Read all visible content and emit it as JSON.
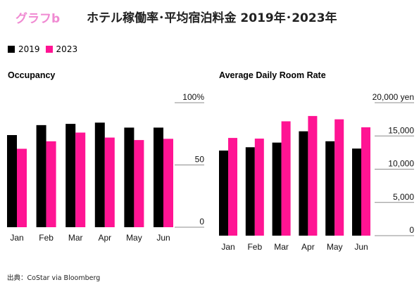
{
  "header": {
    "brand": "グラフb",
    "title": "ホテル稼働率･平均宿泊料金  2019年･2023年"
  },
  "legend": [
    {
      "label": "2019",
      "color": "#000000"
    },
    {
      "label": "2023",
      "color": "#ff1493"
    }
  ],
  "chart_data": [
    {
      "type": "bar",
      "title": "Occupancy",
      "categories": [
        "Jan",
        "Feb",
        "Mar",
        "Apr",
        "May",
        "Jun"
      ],
      "series": [
        {
          "name": "2019",
          "color": "#000000",
          "values": [
            74,
            82,
            83,
            84,
            80,
            80
          ]
        },
        {
          "name": "2023",
          "color": "#ff1493",
          "values": [
            63,
            69,
            76,
            72,
            70,
            71
          ]
        }
      ],
      "ylim": [
        0,
        100
      ],
      "yticks": [
        0,
        50,
        100
      ],
      "ytick_labels": [
        "0",
        "50",
        "100%"
      ],
      "axis_position": "right",
      "grid": true
    },
    {
      "type": "bar",
      "title": "Average Daily Room Rate",
      "categories": [
        "Jan",
        "Feb",
        "Mar",
        "Apr",
        "May",
        "Jun"
      ],
      "series": [
        {
          "name": "2019",
          "color": "#000000",
          "values": [
            12800,
            13300,
            14000,
            15700,
            14200,
            13100
          ]
        },
        {
          "name": "2023",
          "color": "#ff1493",
          "values": [
            14700,
            14600,
            17200,
            18000,
            17500,
            16300
          ]
        }
      ],
      "ylim": [
        0,
        20000
      ],
      "yticks": [
        0,
        5000,
        10000,
        15000,
        20000
      ],
      "ytick_labels": [
        "0",
        "5,000",
        "10,000",
        "15,000",
        "20,000 yen"
      ],
      "axis_position": "right",
      "grid": true
    }
  ],
  "source": "出典：CoStar via Bloomberg"
}
